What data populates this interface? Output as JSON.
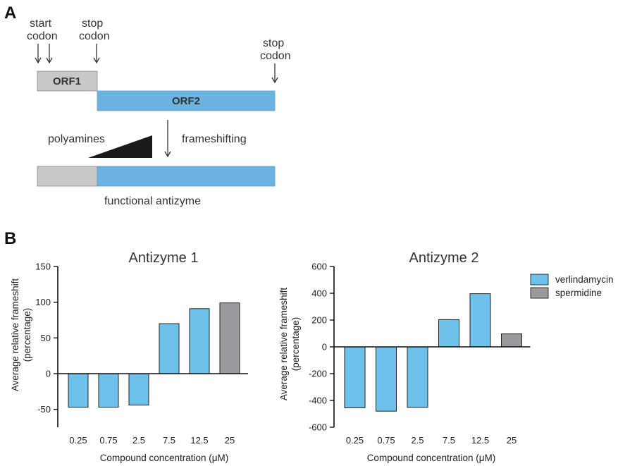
{
  "panel_a": {
    "letter": "A",
    "start_codon": [
      "start",
      "codon"
    ],
    "stop_codon_1": [
      "stop",
      "codon"
    ],
    "stop_codon_2": [
      "stop",
      "codon"
    ],
    "orf1": "ORF1",
    "orf2": "ORF2",
    "polyamines": "polyamines",
    "frameshifting": "frameshifting",
    "functional": "functional antizyme",
    "colors": {
      "grey": "#c8c8c8",
      "blue": "#6cb3e2",
      "ramp": "#1a1a1a"
    }
  },
  "panel_b": {
    "letter": "B"
  },
  "legend": [
    {
      "label": "verlindamycin",
      "color": "#6ec1ea"
    },
    {
      "label": "spermidine",
      "color": "#9a9a9e"
    }
  ],
  "chart_data": [
    {
      "type": "bar",
      "title": "Antizyme 1",
      "categories": [
        "0.25",
        "0.75",
        "2.5",
        "7.5",
        "12.5",
        "25"
      ],
      "values": [
        -47,
        -47,
        -44,
        70,
        91,
        99
      ],
      "bar_colors": [
        "#6ec1ea",
        "#6ec1ea",
        "#6ec1ea",
        "#6ec1ea",
        "#6ec1ea",
        "#9a9a9e"
      ],
      "ylim": [
        -75,
        150
      ],
      "yticks": [
        -50,
        0,
        50,
        100,
        150
      ],
      "ytick_labels": [
        "-50",
        "0",
        "50",
        "100",
        "150"
      ],
      "ylabel": [
        "Average relative frameshift",
        "(percentage)"
      ],
      "xlabel": "Compound concentration (μM)"
    },
    {
      "type": "bar",
      "title": "Antizyme 2",
      "categories": [
        "0.25",
        "0.75",
        "2.5",
        "7.5",
        "12.5",
        "25"
      ],
      "values": [
        -455,
        -480,
        -452,
        203,
        397,
        97
      ],
      "bar_colors": [
        "#6ec1ea",
        "#6ec1ea",
        "#6ec1ea",
        "#6ec1ea",
        "#6ec1ea",
        "#9a9a9e"
      ],
      "ylim": [
        -600,
        600
      ],
      "yticks": [
        -600,
        -400,
        -200,
        0,
        200,
        400,
        600
      ],
      "ytick_labels": [
        "-600",
        "-400",
        "-200",
        "0",
        "200",
        "400",
        "600"
      ],
      "ylabel": [
        "Average relative frameshift",
        "(percentage)"
      ],
      "xlabel": "Compound concentration (μM)"
    }
  ]
}
